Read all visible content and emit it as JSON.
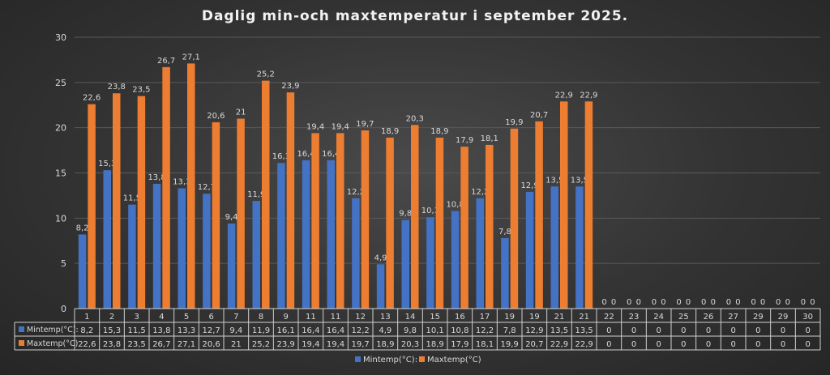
{
  "chart_data": {
    "type": "bar",
    "title": "Daglig min-och maxtemperatur i september 2025.",
    "categories": [
      "1",
      "2",
      "3",
      "4",
      "5",
      "6",
      "7",
      "8",
      "9",
      "11",
      "11",
      "12",
      "13",
      "14",
      "15",
      "16",
      "17",
      "19",
      "19",
      "21",
      "21",
      "22",
      "23",
      "24",
      "25",
      "26",
      "27",
      "29",
      "29",
      "30"
    ],
    "series": [
      {
        "name": "Mintemp(°C):",
        "color": "#4472c4",
        "values": [
          8.2,
          15.3,
          11.5,
          13.8,
          13.3,
          12.7,
          9.4,
          11.9,
          16.1,
          16.4,
          16.4,
          12.2,
          4.9,
          9.8,
          10.1,
          10.8,
          12.2,
          7.8,
          12.9,
          13.5,
          13.5,
          0,
          0,
          0,
          0,
          0,
          0,
          0,
          0,
          0
        ],
        "labels": [
          "8,2",
          "15,3",
          "11,5",
          "13,8",
          "13,3",
          "12,7",
          "9,4",
          "11,9",
          "16,1",
          "16,4",
          "16,4",
          "12,2",
          "4,9",
          "9,8",
          "10,1",
          "10,8",
          "12,2",
          "7,8",
          "12,9",
          "13,5",
          "13,5",
          "0",
          "0",
          "0",
          "0",
          "0",
          "0",
          "0",
          "0",
          "0"
        ]
      },
      {
        "name": "Maxtemp(°C)",
        "color": "#ed7d31",
        "values": [
          22.6,
          23.8,
          23.5,
          26.7,
          27.1,
          20.6,
          21,
          25.2,
          23.9,
          19.4,
          19.4,
          19.7,
          18.9,
          20.3,
          18.9,
          17.9,
          18.1,
          19.9,
          20.7,
          22.9,
          22.9,
          0,
          0,
          0,
          0,
          0,
          0,
          0,
          0,
          0
        ],
        "labels": [
          "22,6",
          "23,8",
          "23,5",
          "26,7",
          "27,1",
          "20,6",
          "21",
          "25,2",
          "23,9",
          "19,4",
          "19,4",
          "19,7",
          "18,9",
          "20,3",
          "18,9",
          "17,9",
          "18,1",
          "19,9",
          "20,7",
          "22,9",
          "22,9",
          "0",
          "0",
          "0",
          "0",
          "0",
          "0",
          "0",
          "0",
          "0"
        ]
      }
    ],
    "table_labels": [
      "Mintemp(°C):",
      "Maxtemp(°C)"
    ],
    "ylim": [
      0,
      30
    ],
    "yticks": [
      "0",
      "5",
      "10",
      "15",
      "20",
      "25",
      "30"
    ],
    "grid": true,
    "legend": "bottom"
  }
}
